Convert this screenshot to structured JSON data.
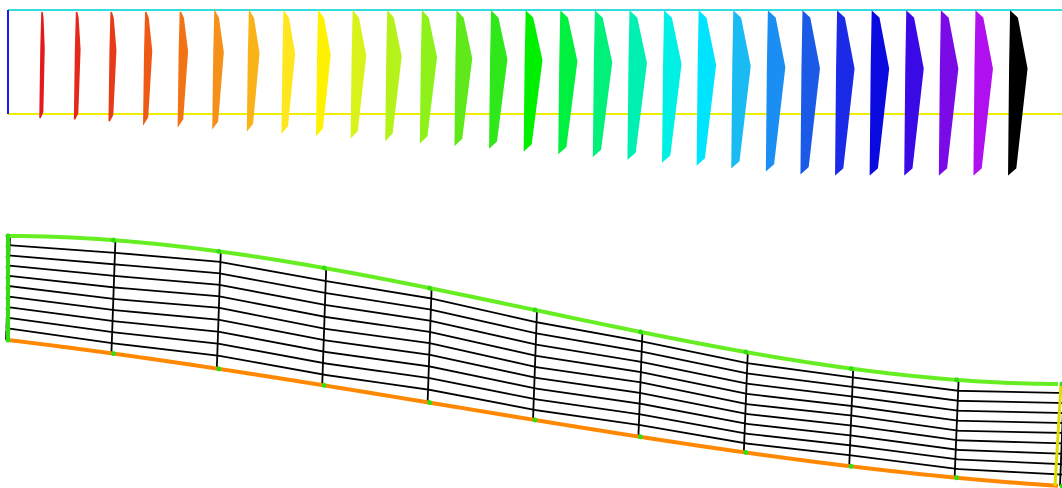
{
  "velocity_panel": {
    "arrow_colors": [
      "#e31a1c",
      "#e4281a",
      "#e63a18",
      "#ee5a16",
      "#f27315",
      "#f5901a",
      "#f9b218",
      "#ffe61e",
      "#fff200",
      "#d9f21a",
      "#b5f21a",
      "#8ef21a",
      "#5fe81a",
      "#2ee81a",
      "#00f000",
      "#00f040",
      "#00f07a",
      "#00f0b4",
      "#00f0e6",
      "#00e4ff",
      "#1abaf2",
      "#1a8ef2",
      "#1a5ae6",
      "#1a2ae6",
      "#0a0ae0",
      "#3a0ae6",
      "#7a0ae6",
      "#b010f0",
      "#000000"
    ],
    "top_wall_color": "#33dddd",
    "bottom_wall_color": "#eeee00",
    "inlet_color": "#1a1aee"
  },
  "mesh_panel": {
    "top_boundary_color": "#66ee22",
    "bottom_boundary_color": "#ff8800",
    "inlet_boundary_color": "#33dd11",
    "outlet_boundary_color": "#dddd00",
    "mesh_line_color": "#000000",
    "node_color": "#33dd11",
    "streamwise_cells": 10,
    "crosswise_cells": 10
  }
}
